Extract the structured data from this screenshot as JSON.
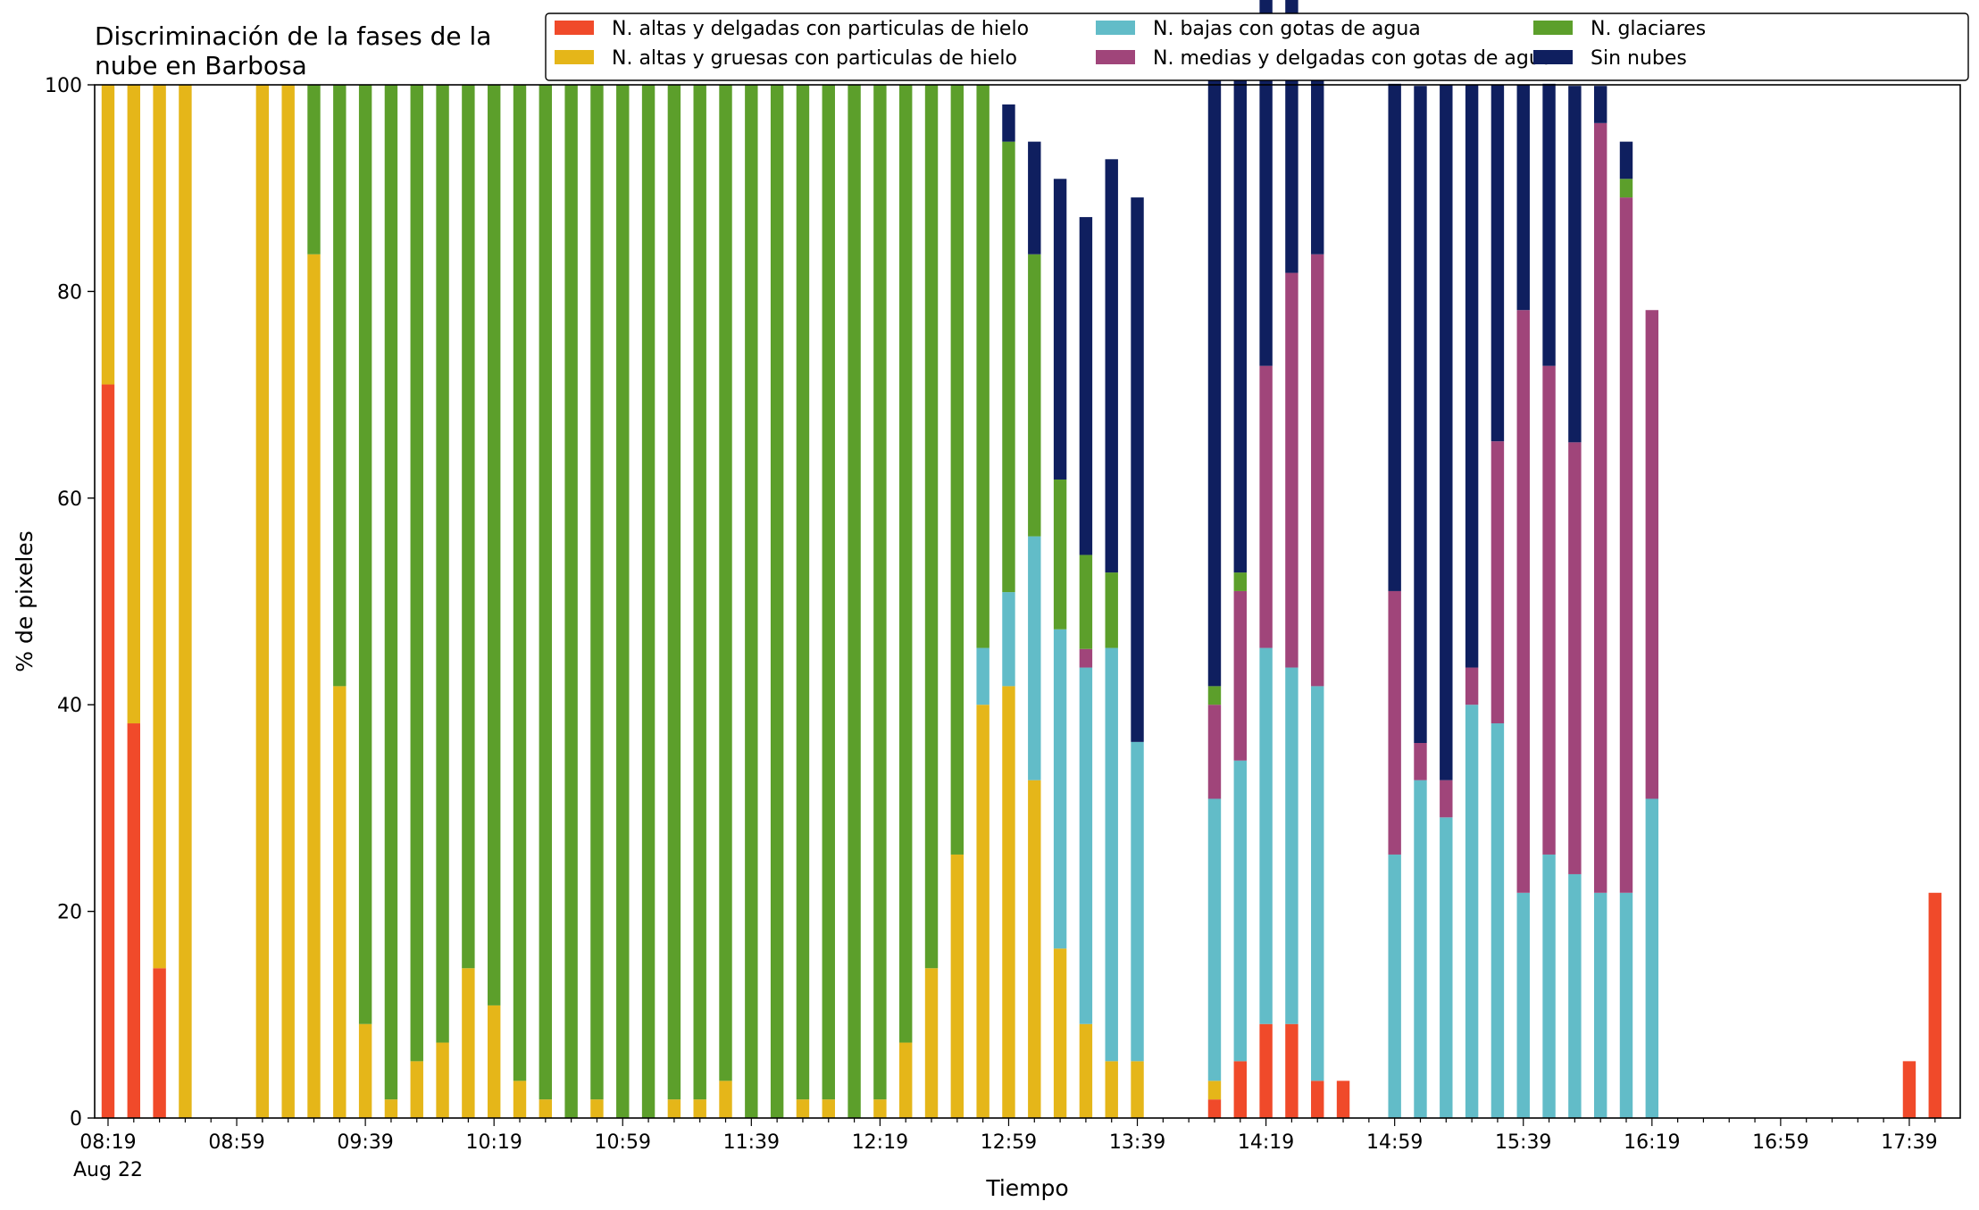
{
  "chart_data": {
    "type": "bar",
    "stacked": true,
    "title_lines": [
      "Discriminación de la fases de la",
      "nube en Barbosa"
    ],
    "xlabel": "Tiempo",
    "ylabel": "% de pixeles",
    "ylim": [
      0,
      100
    ],
    "y_ticks": [
      0,
      20,
      40,
      60,
      80,
      100
    ],
    "x_tick_labels": [
      "08:19",
      "08:59",
      "09:39",
      "10:19",
      "10:59",
      "11:39",
      "12:19",
      "12:59",
      "13:39",
      "14:19",
      "14:59",
      "15:39",
      "16:19",
      "16:59",
      "17:39"
    ],
    "x_date_label": "Aug 22",
    "x_interval_minutes": 8,
    "legend_position": "top-right",
    "legend_columns": 3,
    "categories": [
      "08:19",
      "08:27",
      "08:35",
      "08:43",
      "08:51",
      "08:59",
      "09:07",
      "09:15",
      "09:23",
      "09:31",
      "09:39",
      "09:47",
      "09:55",
      "10:03",
      "10:11",
      "10:19",
      "10:27",
      "10:35",
      "10:43",
      "10:51",
      "10:59",
      "11:07",
      "11:15",
      "11:23",
      "11:31",
      "11:39",
      "11:47",
      "11:55",
      "12:03",
      "12:11",
      "12:19",
      "12:27",
      "12:35",
      "12:43",
      "12:51",
      "12:59",
      "13:07",
      "13:15",
      "13:23",
      "13:31",
      "13:39",
      "13:47",
      "13:55",
      "14:03",
      "14:11",
      "14:19",
      "14:27",
      "14:35",
      "14:43",
      "14:51",
      "14:59",
      "15:07",
      "15:15",
      "15:23",
      "15:31",
      "15:39",
      "15:47",
      "15:55",
      "16:03",
      "16:11",
      "16:19",
      "16:27",
      "16:35",
      "16:43",
      "16:51",
      "16:59",
      "17:07",
      "17:15",
      "17:23",
      "17:31",
      "17:39",
      "17:47"
    ],
    "series": [
      {
        "name": "N. altas y delgadas con particulas de hielo",
        "color": "#f04a2a",
        "values": [
          71,
          38.2,
          14.5,
          0,
          0,
          0,
          0,
          0,
          0,
          0,
          0,
          0,
          0,
          0,
          0,
          0,
          0,
          0,
          0,
          0,
          0,
          0,
          0,
          0,
          0,
          0,
          0,
          0,
          0,
          0,
          0,
          0,
          0,
          0,
          0,
          0,
          0,
          0,
          0,
          0,
          0,
          0,
          0,
          1.8,
          5.5,
          9.1,
          9.1,
          3.6,
          3.6,
          0,
          0,
          0,
          0,
          0,
          0,
          0,
          0,
          0,
          0,
          0,
          0,
          0,
          0,
          0,
          0,
          0,
          0,
          0,
          0,
          0,
          5.5,
          21.8
        ]
      },
      {
        "name": "N. altas y gruesas con particulas de hielo",
        "color": "#e5b619",
        "values": [
          29,
          61.8,
          85.5,
          100,
          0,
          0,
          100,
          100,
          83.6,
          41.8,
          9.1,
          1.8,
          5.5,
          7.3,
          14.5,
          10.9,
          3.6,
          1.8,
          0,
          1.8,
          0,
          0,
          1.8,
          1.8,
          3.6,
          0,
          0,
          1.8,
          1.8,
          0,
          1.8,
          7.3,
          14.5,
          25.5,
          40,
          41.8,
          32.7,
          16.4,
          9.1,
          5.5,
          5.5,
          0,
          0,
          1.8,
          0,
          0,
          0,
          0,
          0,
          0,
          0,
          0,
          0,
          0,
          0,
          0,
          0,
          0,
          0,
          0,
          0,
          0,
          0,
          0,
          0,
          0,
          0,
          0,
          0,
          0,
          0,
          0
        ]
      },
      {
        "name": "N. bajas con gotas de agua",
        "color": "#62bcc8",
        "values": [
          0,
          0,
          0,
          0,
          0,
          0,
          0,
          0,
          0,
          0,
          0,
          0,
          0,
          0,
          0,
          0,
          0,
          0,
          0,
          0,
          0,
          0,
          0,
          0,
          0,
          0,
          0,
          0,
          0,
          0,
          0,
          0,
          0,
          0,
          5.5,
          9.1,
          23.6,
          30.9,
          34.5,
          40,
          30.9,
          0,
          0,
          27.3,
          29.1,
          36.4,
          34.5,
          38.2,
          0,
          0,
          25.5,
          32.7,
          29.1,
          40,
          38.2,
          21.8,
          25.5,
          23.6,
          21.8,
          21.8,
          30.9,
          0,
          0,
          0,
          0,
          0,
          0,
          0,
          0,
          0,
          0,
          0
        ]
      },
      {
        "name": "N. medias y delgadas con gotas de agua",
        "color": "#a0457a",
        "values": [
          0,
          0,
          0,
          0,
          0,
          0,
          0,
          0,
          0,
          0,
          0,
          0,
          0,
          0,
          0,
          0,
          0,
          0,
          0,
          0,
          0,
          0,
          0,
          0,
          0,
          0,
          0,
          0,
          0,
          0,
          0,
          0,
          0,
          0,
          0,
          0,
          0,
          0,
          1.8,
          0,
          0,
          0,
          0,
          9.1,
          16.4,
          27.3,
          38.2,
          41.8,
          0,
          0,
          25.5,
          3.6,
          3.6,
          3.6,
          27.3,
          56.4,
          47.3,
          41.8,
          74.5,
          67.3,
          47.3,
          0,
          0,
          0,
          0,
          0,
          0,
          0,
          0,
          0,
          0,
          0
        ]
      },
      {
        "name": "N. glaciares",
        "color": "#5c9f2b",
        "values": [
          0,
          0,
          0,
          0,
          0,
          0,
          0,
          0,
          16.4,
          58.2,
          90.9,
          98.2,
          94.5,
          92.7,
          85.5,
          89.1,
          96.4,
          98.2,
          100,
          98.2,
          100,
          100,
          98.2,
          98.2,
          96.4,
          100,
          100,
          98.2,
          98.2,
          100,
          98.2,
          92.7,
          85.5,
          74.5,
          54.5,
          43.6,
          27.3,
          14.5,
          9.1,
          7.3,
          0,
          0,
          0,
          1.8,
          1.8,
          0,
          0,
          0,
          0,
          0,
          0,
          0,
          0,
          0,
          0,
          0,
          0,
          0,
          0,
          1.8,
          0,
          0,
          0,
          0,
          0,
          0,
          0,
          0,
          0,
          0,
          0,
          0
        ]
      },
      {
        "name": "Sin nubes",
        "color": "#0f1f5f",
        "values": [
          0,
          0,
          0,
          0,
          0,
          0,
          0,
          0,
          0,
          0,
          0,
          0,
          0,
          0,
          0,
          0,
          0,
          0,
          0,
          0,
          0,
          0,
          0,
          0,
          0,
          0,
          0,
          0,
          0,
          0,
          0,
          0,
          0,
          0,
          0,
          3.6,
          10.9,
          29.1,
          32.7,
          40,
          52.7,
          0,
          0,
          60,
          52.7,
          36.4,
          27.3,
          20,
          0,
          0,
          49.1,
          63.6,
          67.3,
          56.4,
          34.5,
          21.8,
          27.3,
          34.5,
          3.6,
          3.6,
          0,
          0,
          0,
          0,
          0,
          0,
          0,
          0,
          0,
          0,
          0,
          0
        ]
      }
    ]
  }
}
